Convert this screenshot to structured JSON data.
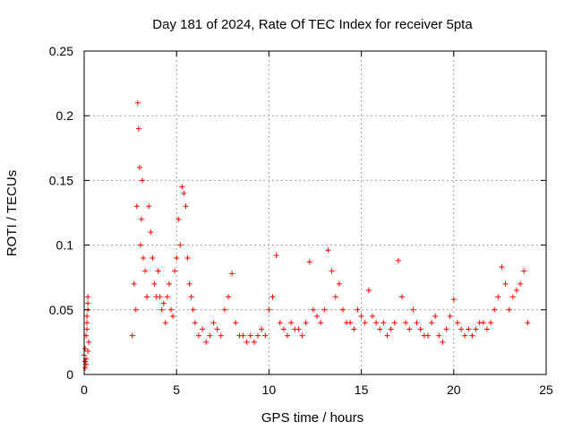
{
  "chart_data": {
    "type": "scatter",
    "title": "Day 181 of 2024, Rate Of TEC Index for receiver 5pta",
    "xlabel": "GPS time / hours",
    "ylabel": "ROTI / TECUs",
    "xlim": [
      0,
      25
    ],
    "ylim": [
      0,
      0.25
    ],
    "xticks": [
      "0",
      "5",
      "10",
      "15",
      "20",
      "25"
    ],
    "yticks": [
      "0",
      "0.05",
      "0.1",
      "0.15",
      "0.2",
      "0.25"
    ],
    "grid": true,
    "marker": "+",
    "colors": {
      "points": "#ff0000",
      "grid": "#a0a0a0",
      "axes": "#000000"
    },
    "series": [
      {
        "x": [
          0.0,
          0.05,
          0.1,
          0.15,
          0.2,
          0.25,
          0.05,
          0.1,
          0.15,
          0.2,
          0.05,
          0.15,
          0.2,
          0.1,
          0.2,
          2.6,
          2.7,
          2.8,
          2.85,
          2.9,
          2.95,
          3.0,
          3.05,
          3.1,
          3.15,
          3.2,
          3.3,
          3.4,
          3.5,
          3.6,
          3.7,
          3.8,
          3.9,
          4.0,
          4.1,
          4.2,
          4.3,
          4.4,
          4.5,
          4.6,
          4.7,
          4.8,
          4.9,
          5.0,
          5.1,
          5.2,
          5.3,
          5.4,
          5.5,
          5.6,
          5.7,
          5.8,
          5.9,
          6.0,
          6.2,
          6.4,
          6.6,
          6.8,
          7.0,
          7.2,
          7.4,
          7.6,
          7.8,
          8.0,
          8.2,
          8.4,
          8.6,
          8.8,
          9.0,
          9.2,
          9.4,
          9.6,
          9.8,
          10.0,
          10.2,
          10.4,
          10.6,
          10.8,
          11.0,
          11.2,
          11.4,
          11.6,
          11.8,
          12.0,
          12.2,
          12.4,
          12.6,
          12.8,
          13.0,
          13.2,
          13.4,
          13.6,
          13.8,
          14.0,
          14.2,
          14.4,
          14.6,
          14.8,
          15.0,
          15.2,
          15.4,
          15.6,
          15.8,
          16.0,
          16.2,
          16.4,
          16.6,
          16.8,
          17.0,
          17.2,
          17.4,
          17.6,
          17.8,
          18.0,
          18.2,
          18.4,
          18.6,
          18.8,
          19.0,
          19.2,
          19.4,
          19.6,
          19.8,
          20.0,
          20.2,
          20.4,
          20.6,
          20.8,
          21.0,
          21.2,
          21.4,
          21.6,
          21.8,
          22.0,
          22.2,
          22.4,
          22.6,
          22.8,
          23.0,
          23.2,
          23.4,
          23.6,
          23.8,
          24.0
        ],
        "y": [
          0.015,
          0.02,
          0.03,
          0.045,
          0.055,
          0.025,
          0.01,
          0.012,
          0.035,
          0.06,
          0.005,
          0.04,
          0.018,
          0.008,
          0.05,
          0.03,
          0.07,
          0.05,
          0.13,
          0.21,
          0.19,
          0.16,
          0.1,
          0.12,
          0.15,
          0.09,
          0.08,
          0.06,
          0.13,
          0.11,
          0.09,
          0.07,
          0.06,
          0.08,
          0.06,
          0.05,
          0.055,
          0.04,
          0.06,
          0.07,
          0.05,
          0.045,
          0.08,
          0.09,
          0.12,
          0.1,
          0.145,
          0.14,
          0.13,
          0.09,
          0.07,
          0.06,
          0.05,
          0.04,
          0.03,
          0.035,
          0.025,
          0.03,
          0.04,
          0.035,
          0.03,
          0.05,
          0.06,
          0.078,
          0.04,
          0.03,
          0.03,
          0.025,
          0.03,
          0.025,
          0.03,
          0.035,
          0.03,
          0.05,
          0.06,
          0.092,
          0.04,
          0.035,
          0.03,
          0.04,
          0.035,
          0.035,
          0.03,
          0.04,
          0.087,
          0.05,
          0.045,
          0.04,
          0.05,
          0.096,
          0.08,
          0.06,
          0.07,
          0.05,
          0.04,
          0.04,
          0.035,
          0.05,
          0.045,
          0.04,
          0.065,
          0.045,
          0.04,
          0.035,
          0.04,
          0.03,
          0.035,
          0.04,
          0.088,
          0.06,
          0.04,
          0.035,
          0.05,
          0.04,
          0.035,
          0.03,
          0.03,
          0.04,
          0.045,
          0.03,
          0.025,
          0.035,
          0.045,
          0.058,
          0.04,
          0.035,
          0.03,
          0.035,
          0.03,
          0.035,
          0.04,
          0.04,
          0.035,
          0.04,
          0.05,
          0.06,
          0.083,
          0.07,
          0.05,
          0.06,
          0.065,
          0.07,
          0.08,
          0.04
        ]
      }
    ]
  }
}
